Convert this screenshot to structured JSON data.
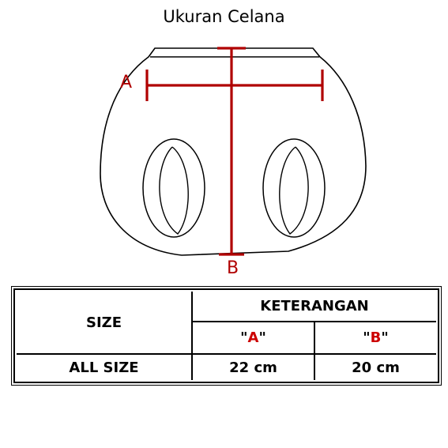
{
  "title": "Ukuran Celana",
  "measure_labels": {
    "a": "A",
    "b": "B"
  },
  "table": {
    "header_size": "SIZE",
    "header_group": "KETERANGAN",
    "col_a_quote_open": "\"",
    "col_a_letter": "A",
    "col_a_quote_close": "\"",
    "col_b_quote_open": "\"",
    "col_b_letter": "B",
    "col_b_quote_close": "\"",
    "row_size": "ALL SIZE",
    "row_a": "22 cm",
    "row_b": "20 cm"
  },
  "colors": {
    "measure_line": "#b00000",
    "letter_accent": "#cc0000"
  }
}
